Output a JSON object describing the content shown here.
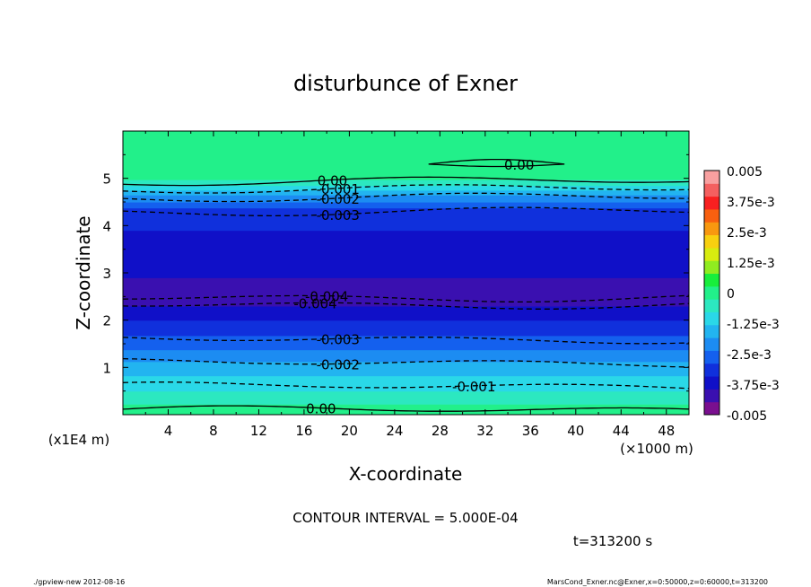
{
  "chart_data": {
    "type": "contour",
    "title": "disturbunce of Exner",
    "xlabel": "X-coordinate",
    "ylabel": "Z-coordinate",
    "x_unit": "(×1000 m)",
    "y_unit": "(x1E4 m)",
    "xlim": [
      0,
      50
    ],
    "ylim": [
      0,
      6
    ],
    "x_ticks": [
      4,
      8,
      12,
      16,
      20,
      24,
      28,
      32,
      36,
      40,
      44,
      48
    ],
    "y_ticks": [
      1,
      2,
      3,
      4,
      5
    ],
    "colorbar": {
      "range": [
        -0.005,
        0.005
      ],
      "labels": [
        "0.005",
        "3.75e-3",
        "2.5e-3",
        "1.25e-3",
        "0",
        "-1.25e-3",
        "-2.5e-3",
        "-3.75e-3",
        "-0.005"
      ],
      "colors": [
        "#7a0f8f",
        "#3a10b0",
        "#1010c8",
        "#1030dc",
        "#1460ee",
        "#1c8cf2",
        "#22b4f0",
        "#2ad8e8",
        "#2ce8c0",
        "#22f08a",
        "#18ee3c",
        "#90ec20",
        "#d8ec10",
        "#f8d010",
        "#f89810",
        "#f86010",
        "#f82020",
        "#f46060",
        "#f8a0a0"
      ]
    },
    "field_profile": {
      "z": [
        0,
        0.2,
        0.5,
        0.75,
        1,
        1.2,
        1.4,
        1.6,
        1.8,
        2,
        2.2,
        2.4,
        2.5,
        2.6,
        2.8,
        3,
        3.5,
        3.75,
        4,
        4.3,
        4.4,
        4.5,
        4.6,
        4.7,
        4.8,
        4.85,
        4.95,
        5,
        6
      ],
      "value": [
        0,
        -0.0002,
        -0.0008,
        -0.0012,
        -0.0016,
        -0.002,
        -0.0024,
        -0.0028,
        -0.0031,
        -0.0034,
        -0.0038,
        -0.0041,
        -0.0042,
        -0.0041,
        -0.004,
        -0.0039,
        -0.0038,
        -0.0036,
        -0.0033,
        -0.0031,
        -0.0028,
        -0.0024,
        -0.002,
        -0.0016,
        -0.0011,
        -0.0008,
        -0.0004,
        0,
        0
      ]
    },
    "contours": [
      {
        "label": "0.00",
        "value": 0.0,
        "z": 4.94,
        "label_x": 18.5
      },
      {
        "label": "0.00",
        "value": 0.0,
        "z": 0.1,
        "label_x": 17.5
      },
      {
        "label": "-0.001",
        "value": -0.001,
        "z": 0.6,
        "label_x": 31
      },
      {
        "label": "-0.002",
        "value": -0.002,
        "z": 1.1,
        "label_x": 19
      },
      {
        "label": "-0.003",
        "value": -0.003,
        "z": 1.6,
        "label_x": 19
      },
      {
        "label": "-0.004",
        "value": -0.004,
        "z": 2.48,
        "label_x": 18
      },
      {
        "label": "-0.004",
        "value": -0.004,
        "z": 2.33,
        "label_x": 17
      },
      {
        "label": "-0.001",
        "value": -0.001,
        "z": 4.78,
        "label_x": 19
      },
      {
        "label": "-0.002",
        "value": -0.002,
        "z": 4.6,
        "label_x": 19
      },
      {
        "label": "-0.003",
        "value": -0.003,
        "z": 4.3,
        "label_x": 19
      },
      {
        "label": "0.00",
        "value": 0.0,
        "z": 5.3,
        "label_x": 35
      }
    ],
    "annotations": {
      "contour_interval": "CONTOUR INTERVAL = 5.000E-04",
      "time": "t=313200  s",
      "footer_left": "./gpview-new   2012-08-16",
      "footer_right": "MarsCond_Exner.nc@Exner,x=0:50000,z=0:60000,t=313200"
    }
  }
}
